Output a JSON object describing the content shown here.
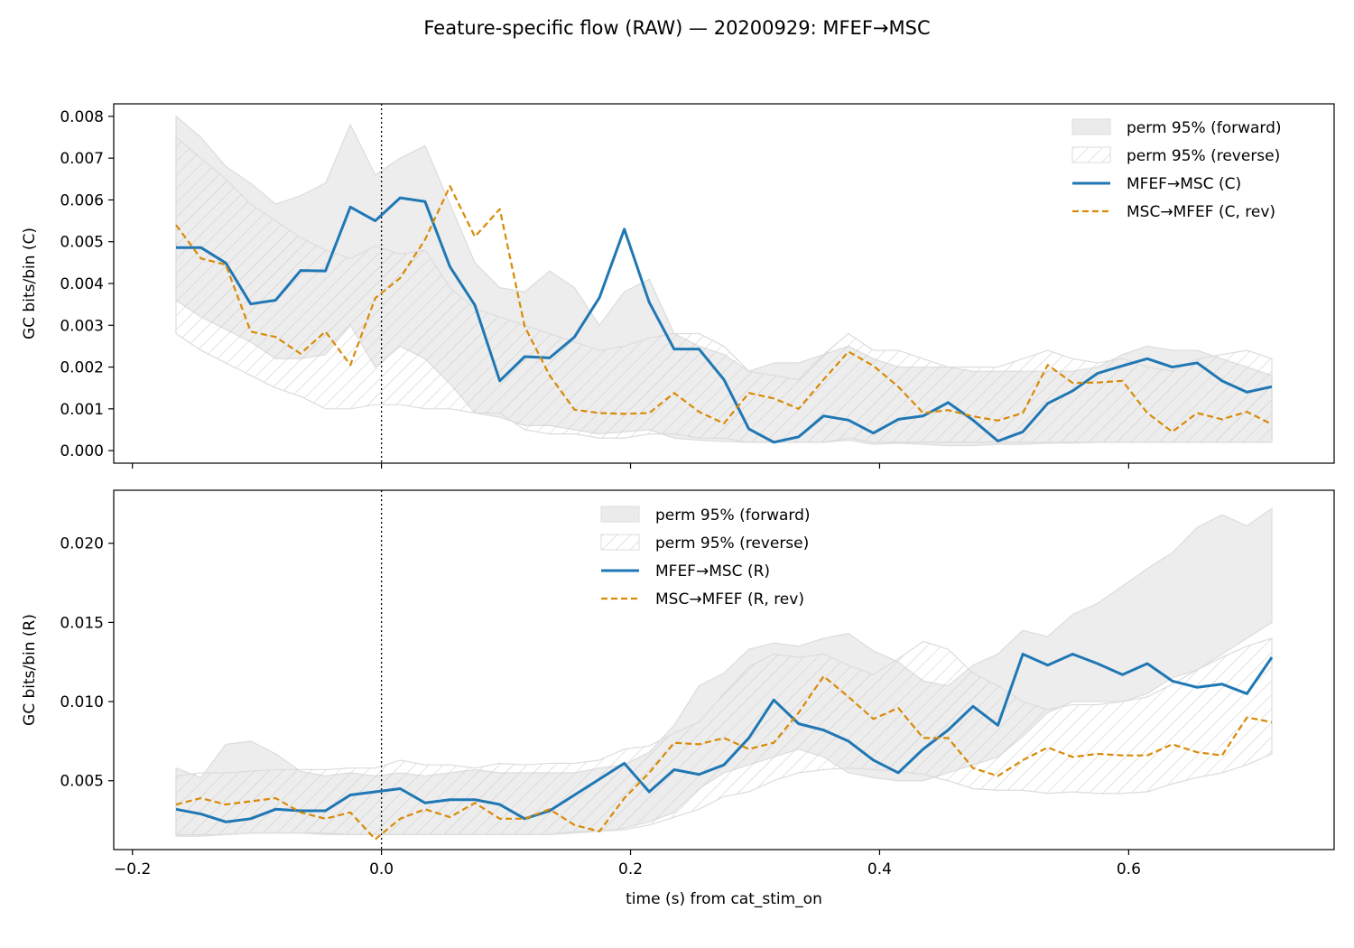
{
  "figure": {
    "title": "Feature-specific flow (RAW) — 20200929: MFEF→MSC"
  },
  "colors": {
    "forward_line": "#1f77b4",
    "reverse_line": "#d98a07",
    "band_fill": "#ebebeb",
    "band_edge": "#dcdcdc",
    "hatch": "#c8c8c8"
  },
  "chart_data": [
    {
      "type": "line",
      "panel": "top",
      "xlabel": "",
      "ylabel": "GC bits/bin (C)",
      "xlim": [
        -0.215,
        0.765
      ],
      "ylim": [
        -0.0003,
        0.0083
      ],
      "xticks": [
        -0.2,
        0.0,
        0.2,
        0.4,
        0.6
      ],
      "xtick_labels": [
        "",
        "",
        "",
        "",
        ""
      ],
      "yticks": [
        0.0,
        0.001,
        0.002,
        0.003,
        0.004,
        0.005,
        0.006,
        0.007,
        0.008
      ],
      "ytick_labels": [
        "0.000",
        "0.001",
        "0.002",
        "0.003",
        "0.004",
        "0.005",
        "0.006",
        "0.007",
        "0.008"
      ],
      "vline_x": 0.0,
      "legend_position": "upper-right",
      "legend": [
        {
          "label": "perm 95% (forward)",
          "kind": "band"
        },
        {
          "label": "perm 95% (reverse)",
          "kind": "hatch"
        },
        {
          "label": "MFEF→MSC (C)",
          "kind": "solid"
        },
        {
          "label": "MSC→MFEF (C, rev)",
          "kind": "dashed"
        }
      ],
      "x": [
        -0.165,
        -0.145,
        -0.125,
        -0.105,
        -0.085,
        -0.065,
        -0.045,
        -0.025,
        -0.005,
        0.015,
        0.035,
        0.055,
        0.075,
        0.095,
        0.115,
        0.135,
        0.155,
        0.175,
        0.195,
        0.215,
        0.235,
        0.255,
        0.275,
        0.295,
        0.315,
        0.335,
        0.355,
        0.375,
        0.395,
        0.415,
        0.435,
        0.455,
        0.475,
        0.495,
        0.515,
        0.535,
        0.555,
        0.575,
        0.595,
        0.615,
        0.635,
        0.655,
        0.675,
        0.695,
        0.715
      ],
      "series": [
        {
          "name": "MFEF→MSC (C)",
          "style": "solid",
          "values": [
            0.00486,
            0.00486,
            0.00449,
            0.00351,
            0.0036,
            0.00431,
            0.0043,
            0.00583,
            0.0055,
            0.00605,
            0.00596,
            0.0044,
            0.00348,
            0.00167,
            0.00225,
            0.00222,
            0.00272,
            0.00366,
            0.0053,
            0.00355,
            0.00243,
            0.00243,
            0.0017,
            0.00052,
            0.0002,
            0.00033,
            0.00083,
            0.00073,
            0.00042,
            0.00075,
            0.00083,
            0.00115,
            0.00073,
            0.00023,
            0.00045,
            0.00113,
            0.00143,
            0.00185,
            0.00203,
            0.0022,
            0.002,
            0.0021,
            0.00167,
            0.0014,
            0.00153
          ]
        },
        {
          "name": "MSC→MFEF (C, rev)",
          "style": "dashed",
          "values": [
            0.0054,
            0.0046,
            0.00445,
            0.00285,
            0.00272,
            0.00232,
            0.00285,
            0.00205,
            0.00365,
            0.00413,
            0.00505,
            0.00633,
            0.00512,
            0.00578,
            0.00297,
            0.0018,
            0.00098,
            0.0009,
            0.00088,
            0.0009,
            0.00138,
            0.00093,
            0.00065,
            0.00138,
            0.00125,
            0.001,
            0.0017,
            0.00237,
            0.00203,
            0.00153,
            0.0009,
            0.00097,
            0.00082,
            0.00072,
            0.0009,
            0.00205,
            0.00162,
            0.00163,
            0.00167,
            0.0009,
            0.00045,
            0.0009,
            0.00075,
            0.00093,
            0.00063
          ]
        }
      ],
      "bands": [
        {
          "name": "perm 95% (forward)",
          "style": "fill",
          "upper": [
            0.008,
            0.0075,
            0.0068,
            0.0064,
            0.0059,
            0.0061,
            0.0064,
            0.0078,
            0.0066,
            0.007,
            0.0073,
            0.0059,
            0.0045,
            0.0039,
            0.0038,
            0.0043,
            0.0039,
            0.003,
            0.0038,
            0.0041,
            0.0028,
            0.0025,
            0.0023,
            0.0019,
            0.0021,
            0.0021,
            0.0023,
            0.0025,
            0.0022,
            0.002,
            0.002,
            0.002,
            0.0019,
            0.0019,
            0.0019,
            0.0019,
            0.0019,
            0.002,
            0.0023,
            0.0025,
            0.0024,
            0.0024,
            0.0022,
            0.002,
            0.0018
          ],
          "lower": [
            0.0036,
            0.0032,
            0.0029,
            0.0026,
            0.0022,
            0.0022,
            0.0023,
            0.003,
            0.002,
            0.0025,
            0.0022,
            0.0016,
            0.0009,
            0.0008,
            0.0006,
            0.0006,
            0.0005,
            0.0004,
            0.00045,
            0.0005,
            0.0003,
            0.00025,
            0.00022,
            0.0002,
            0.0002,
            0.0002,
            0.0002,
            0.00025,
            0.00015,
            0.00018,
            0.00015,
            0.00012,
            0.00012,
            0.00015,
            0.00015,
            0.00018,
            0.00018,
            0.0002,
            0.0002,
            0.0002,
            0.0002,
            0.0002,
            0.0002,
            0.0002,
            0.0002
          ]
        },
        {
          "name": "perm 95% (reverse)",
          "style": "hatch",
          "upper": [
            0.0075,
            0.007,
            0.0065,
            0.0059,
            0.0055,
            0.0051,
            0.0048,
            0.0046,
            0.0049,
            0.0047,
            0.0048,
            0.0039,
            0.0034,
            0.0032,
            0.003,
            0.0028,
            0.0026,
            0.0024,
            0.0025,
            0.0027,
            0.0028,
            0.0028,
            0.0025,
            0.0019,
            0.0018,
            0.0017,
            0.0023,
            0.0028,
            0.0024,
            0.0024,
            0.0022,
            0.002,
            0.002,
            0.002,
            0.0022,
            0.0024,
            0.0022,
            0.0021,
            0.0022,
            0.002,
            0.0019,
            0.0022,
            0.0023,
            0.0024,
            0.0022
          ],
          "lower": [
            0.0028,
            0.0024,
            0.0021,
            0.0018,
            0.0015,
            0.0013,
            0.001,
            0.001,
            0.0011,
            0.0011,
            0.001,
            0.001,
            0.0009,
            0.0009,
            0.0005,
            0.0004,
            0.0004,
            0.0003,
            0.0003,
            0.0004,
            0.0004,
            0.0003,
            0.0003,
            0.0002,
            0.0002,
            0.0002,
            0.0002,
            0.0003,
            0.0002,
            0.0002,
            0.0002,
            0.0002,
            0.0002,
            0.0002,
            0.0002,
            0.0002,
            0.0002,
            0.0002,
            0.0002,
            0.0002,
            0.0002,
            0.0002,
            0.0002,
            0.0002,
            0.0002
          ]
        }
      ]
    },
    {
      "type": "line",
      "panel": "bottom",
      "xlabel": "time (s) from cat_stim_on",
      "ylabel": "GC bits/bin (R)",
      "xlim": [
        -0.215,
        0.765
      ],
      "ylim": [
        0.00065,
        0.02335
      ],
      "xticks": [
        -0.2,
        0.0,
        0.2,
        0.4,
        0.6
      ],
      "xtick_labels": [
        "−0.2",
        "0.0",
        "0.2",
        "0.4",
        "0.6"
      ],
      "yticks": [
        0.005,
        0.01,
        0.015,
        0.02
      ],
      "ytick_labels": [
        "0.005",
        "0.010",
        "0.015",
        "0.020"
      ],
      "vline_x": 0.0,
      "legend_position": "upper-center",
      "legend": [
        {
          "label": "perm 95% (forward)",
          "kind": "band"
        },
        {
          "label": "perm 95% (reverse)",
          "kind": "hatch"
        },
        {
          "label": "MFEF→MSC (R)",
          "kind": "solid"
        },
        {
          "label": "MSC→MFEF (R, rev)",
          "kind": "dashed"
        }
      ],
      "x": [
        -0.165,
        -0.145,
        -0.125,
        -0.105,
        -0.085,
        -0.065,
        -0.045,
        -0.025,
        -0.005,
        0.015,
        0.035,
        0.055,
        0.075,
        0.095,
        0.115,
        0.135,
        0.155,
        0.175,
        0.195,
        0.215,
        0.235,
        0.255,
        0.275,
        0.295,
        0.315,
        0.335,
        0.355,
        0.375,
        0.395,
        0.415,
        0.435,
        0.455,
        0.475,
        0.495,
        0.515,
        0.535,
        0.555,
        0.575,
        0.595,
        0.615,
        0.635,
        0.655,
        0.675,
        0.695,
        0.715
      ],
      "series": [
        {
          "name": "MFEF→MSC (R)",
          "style": "solid",
          "values": [
            0.0032,
            0.0029,
            0.0024,
            0.0026,
            0.0032,
            0.0031,
            0.0031,
            0.0041,
            0.0043,
            0.0045,
            0.0036,
            0.0038,
            0.0038,
            0.0035,
            0.0026,
            0.0031,
            0.0041,
            0.0051,
            0.0061,
            0.0043,
            0.0057,
            0.0054,
            0.006,
            0.0077,
            0.0101,
            0.0086,
            0.0082,
            0.0075,
            0.0063,
            0.0055,
            0.007,
            0.0082,
            0.0097,
            0.0085,
            0.013,
            0.0123,
            0.013,
            0.0124,
            0.0117,
            0.0124,
            0.0113,
            0.0109,
            0.0111,
            0.0105,
            0.0128
          ]
        },
        {
          "name": "MSC→MFEF (R, rev)",
          "style": "dashed",
          "values": [
            0.0035,
            0.0039,
            0.0035,
            0.0037,
            0.0039,
            0.003,
            0.0026,
            0.003,
            0.0013,
            0.0026,
            0.0032,
            0.0027,
            0.0036,
            0.0026,
            0.0026,
            0.0032,
            0.0022,
            0.0018,
            0.0039,
            0.0055,
            0.0074,
            0.0073,
            0.0077,
            0.007,
            0.0074,
            0.0093,
            0.0116,
            0.0103,
            0.0089,
            0.0096,
            0.0077,
            0.0077,
            0.0058,
            0.0053,
            0.0063,
            0.0071,
            0.0065,
            0.0067,
            0.0066,
            0.0066,
            0.0073,
            0.0068,
            0.0066,
            0.009,
            0.0087
          ]
        }
      ],
      "bands": [
        {
          "name": "perm 95% (forward)",
          "style": "fill",
          "upper": [
            0.0058,
            0.0052,
            0.0073,
            0.0075,
            0.0067,
            0.0056,
            0.0053,
            0.0055,
            0.0053,
            0.0055,
            0.0053,
            0.0055,
            0.0057,
            0.0055,
            0.0055,
            0.0055,
            0.0055,
            0.0058,
            0.006,
            0.0068,
            0.0085,
            0.011,
            0.0118,
            0.0133,
            0.0137,
            0.0135,
            0.014,
            0.0143,
            0.0132,
            0.0125,
            0.0113,
            0.011,
            0.0123,
            0.013,
            0.0145,
            0.0141,
            0.0155,
            0.0162,
            0.0173,
            0.0184,
            0.0194,
            0.021,
            0.0218,
            0.0211,
            0.0222
          ],
          "lower": [
            0.0015,
            0.0015,
            0.0016,
            0.0017,
            0.0017,
            0.0017,
            0.0016,
            0.0016,
            0.0016,
            0.0016,
            0.0016,
            0.0016,
            0.0016,
            0.0016,
            0.0016,
            0.0016,
            0.0017,
            0.0018,
            0.002,
            0.0024,
            0.003,
            0.0045,
            0.0055,
            0.006,
            0.0065,
            0.007,
            0.0065,
            0.0055,
            0.0052,
            0.005,
            0.005,
            0.0055,
            0.006,
            0.0065,
            0.0078,
            0.0093,
            0.01,
            0.01,
            0.01,
            0.0105,
            0.0115,
            0.012,
            0.013,
            0.014,
            0.015
          ]
        },
        {
          "name": "perm 95% (reverse)",
          "style": "hatch",
          "upper": [
            0.0053,
            0.0055,
            0.0055,
            0.0056,
            0.0057,
            0.0057,
            0.0057,
            0.0058,
            0.0058,
            0.0063,
            0.006,
            0.006,
            0.0058,
            0.0061,
            0.006,
            0.0061,
            0.0061,
            0.0063,
            0.007,
            0.0072,
            0.008,
            0.0087,
            0.0105,
            0.0122,
            0.013,
            0.0128,
            0.013,
            0.0123,
            0.0117,
            0.0127,
            0.0138,
            0.0133,
            0.0118,
            0.011,
            0.01,
            0.0095,
            0.0098,
            0.0098,
            0.01,
            0.0103,
            0.0111,
            0.012,
            0.0128,
            0.0135,
            0.014
          ],
          "lower": [
            0.0016,
            0.0016,
            0.0016,
            0.0017,
            0.0017,
            0.0017,
            0.0017,
            0.0016,
            0.0016,
            0.0016,
            0.0016,
            0.0016,
            0.0016,
            0.0016,
            0.0016,
            0.0016,
            0.0018,
            0.0018,
            0.0019,
            0.0022,
            0.0027,
            0.0032,
            0.004,
            0.0043,
            0.005,
            0.0055,
            0.0057,
            0.0058,
            0.0057,
            0.0056,
            0.0054,
            0.005,
            0.0045,
            0.0044,
            0.0044,
            0.0042,
            0.0043,
            0.0042,
            0.0042,
            0.0043,
            0.0048,
            0.0052,
            0.0055,
            0.006,
            0.0067
          ]
        }
      ]
    }
  ]
}
